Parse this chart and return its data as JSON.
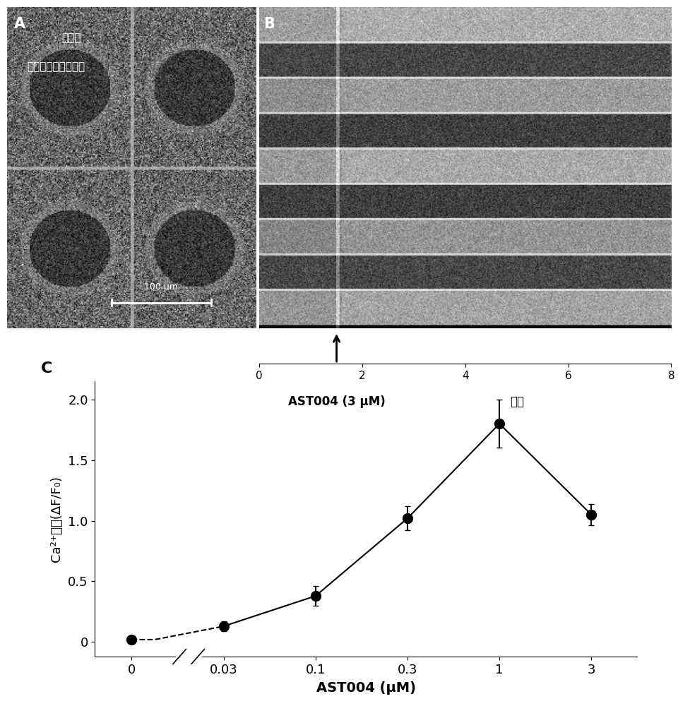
{
  "panel_A_label": "A",
  "panel_B_label": "B",
  "panel_C_label": "C",
  "panel_A_text1": "静止钙",
  "panel_A_text2": "培养的星形胶质细胞",
  "panel_A_scalebar_text": "100 μm",
  "panel_B_time_axis_label": "分钟",
  "panel_B_drug_label": "AST004 (3 μM)",
  "panel_B_xticks": [
    0,
    2,
    4,
    6,
    8
  ],
  "x_values": [
    0,
    0.01,
    0.03,
    0.1,
    0.3,
    1.0,
    3.0
  ],
  "y_values": [
    0.02,
    0.02,
    0.13,
    0.38,
    1.02,
    1.8,
    1.05
  ],
  "y_errors": [
    0.025,
    0.025,
    0.04,
    0.08,
    0.1,
    0.2,
    0.09
  ],
  "x_tick_labels_C": [
    "0",
    "0.03",
    "0.1",
    "0.3",
    "1",
    "3"
  ],
  "xlabel_C": "AST004 (μM)",
  "ylabel_C": "Ca²⁺反应(ΔF/F₀)",
  "yticks_C": [
    0.0,
    0.5,
    1.0,
    1.5,
    2.0
  ],
  "ytick_labels_C": [
    "0",
    "0.5",
    "1.0",
    "1.5",
    "2.0"
  ],
  "ylim_C": [
    -0.12,
    2.15
  ],
  "marker_size": 10,
  "line_width": 1.5
}
